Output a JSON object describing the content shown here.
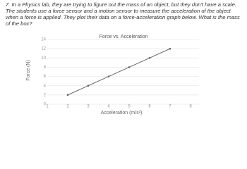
{
  "question": "7. In a Physics lab, they are trying to figure out the mass of an object, but they don't have a scale. The students use a force sensor and a motion sensor to measure the acceleration of the object when a force is applied. They plot their data on a force-acceleration graph below. What is the mass of the box?",
  "chart_data": {
    "type": "line",
    "title": "Force vs. Acceleration",
    "x_label": "Acceleration (m/s²)",
    "y_label": "Force (N)",
    "x": [
      2,
      3,
      4,
      5,
      6,
      7
    ],
    "series": [
      {
        "color": "#666666",
        "values": [
          2,
          4,
          6,
          8,
          10,
          12
        ]
      }
    ],
    "xlim": [
      1,
      8
    ],
    "xticks": [
      1,
      2,
      3,
      4,
      5,
      6,
      7,
      8
    ],
    "ylim": [
      0,
      14
    ],
    "yticks": [
      0,
      2,
      4,
      6,
      8,
      10,
      12,
      14
    ],
    "grid": true
  }
}
